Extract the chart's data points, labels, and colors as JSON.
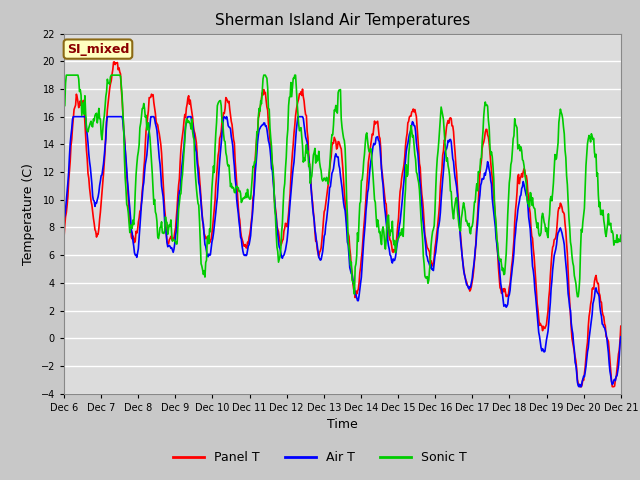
{
  "title": "Sherman Island Air Temperatures",
  "xlabel": "Time",
  "ylabel": "Temperature (C)",
  "ylim": [
    -4,
    22
  ],
  "yticks": [
    -4,
    -2,
    0,
    2,
    4,
    6,
    8,
    10,
    12,
    14,
    16,
    18,
    20,
    22
  ],
  "x_labels": [
    "Dec 6",
    "Dec 7",
    "Dec 8",
    "Dec 9",
    "Dec 10",
    "Dec 11",
    "Dec 12",
    "Dec 13",
    "Dec 14",
    "Dec 15",
    "Dec 16",
    "Dec 17",
    "Dec 18",
    "Dec 19",
    "Dec 20",
    "Dec 21"
  ],
  "annotation_text": "SI_mixed",
  "annotation_color": "#8B0000",
  "annotation_bg": "#FFFFC0",
  "annotation_border": "#8B6914",
  "line_colors": {
    "panel_t": "#FF0000",
    "air_t": "#0000FF",
    "sonic_t": "#00CC00"
  },
  "line_widths": {
    "panel_t": 1.2,
    "air_t": 1.2,
    "sonic_t": 1.2
  },
  "legend_labels": [
    "Panel T",
    "Air T",
    "Sonic T"
  ],
  "fig_bg": "#C8C8C8",
  "plot_bg": "#DCDCDC",
  "grid_color": "#FFFFFF",
  "title_fontsize": 11,
  "axis_label_fontsize": 9
}
